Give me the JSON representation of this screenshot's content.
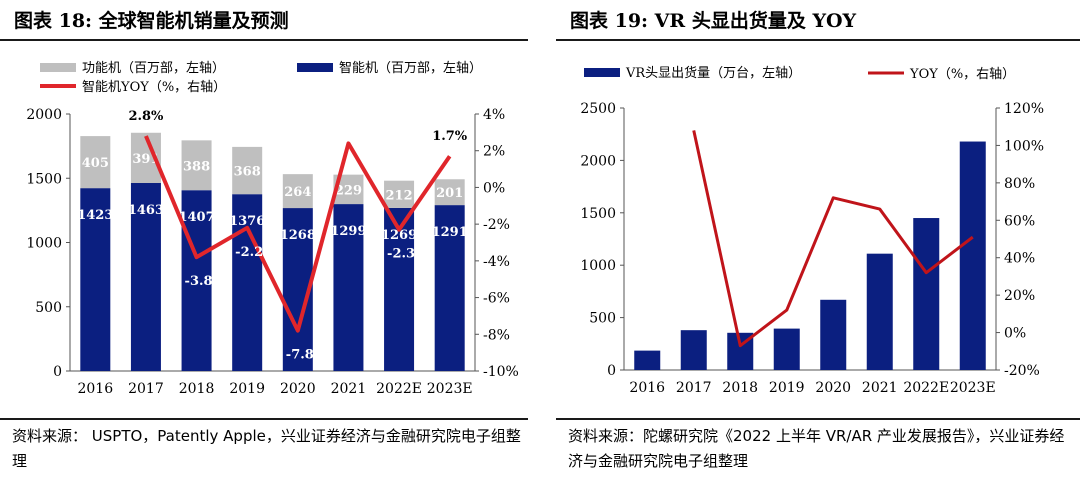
{
  "chart_data": [
    {
      "id": "smartphone",
      "type": "bar",
      "title": "图表 18:  全球智能机销量及预测",
      "categories": [
        "2016",
        "2017",
        "2018",
        "2019",
        "2020",
        "2021",
        "2022E",
        "2023E"
      ],
      "series": [
        {
          "name": "智能机（百万部，左轴）",
          "kind": "bar-stack",
          "axis": "left",
          "color": "#0b1f80",
          "values": [
            1423,
            1463,
            1407,
            1376,
            1268,
            1299,
            1269,
            1291
          ]
        },
        {
          "name": "功能机（百万部，左轴）",
          "kind": "bar-stack",
          "axis": "left",
          "color": "#bfbfbf",
          "values": [
            405,
            391,
            388,
            368,
            264,
            229,
            212,
            201
          ]
        },
        {
          "name": "智能机YOY（%，右轴）",
          "kind": "line",
          "axis": "right",
          "color": "#e0262b",
          "values": [
            null,
            2.8,
            -3.8,
            -2.2,
            -7.8,
            2.4,
            -2.3,
            1.7
          ]
        }
      ],
      "left_axis": {
        "min": 0,
        "max": 2000,
        "ticks": [
          "0",
          "500",
          "1000",
          "1500",
          "2000"
        ]
      },
      "right_axis": {
        "min": -10,
        "max": 4,
        "ticks": [
          "-10%",
          "-8%",
          "-6%",
          "-4%",
          "-2%",
          "0%",
          "2%",
          "4%"
        ]
      },
      "point_labels": [
        {
          "index": 1,
          "text": "2.8%"
        },
        {
          "index": 2,
          "text": "-3.8"
        },
        {
          "index": 3,
          "text": "-2.2"
        },
        {
          "index": 4,
          "text": "-7.8"
        },
        {
          "index": 6,
          "text": "-2.3"
        },
        {
          "index": 7,
          "text": "1.7%"
        }
      ],
      "source": "资料来源：  USPTO，Patently Apple，兴业证券经济与金融研究院电子组整理"
    },
    {
      "id": "vr",
      "type": "bar",
      "title": "图表 19:   VR 头显出货量及 YOY",
      "categories": [
        "2016",
        "2017",
        "2018",
        "2019",
        "2020",
        "2021",
        "2022E",
        "2023E"
      ],
      "series": [
        {
          "name": "VR头显出货量（万台，左轴）",
          "kind": "bar",
          "axis": "left",
          "color": "#0b1f80",
          "values": [
            185,
            380,
            355,
            395,
            670,
            1110,
            1450,
            2180
          ]
        },
        {
          "name": "YOY（%，右轴）",
          "kind": "line",
          "axis": "right",
          "color": "#c0141a",
          "values": [
            null,
            108,
            -7,
            12,
            72,
            66,
            32,
            51
          ]
        }
      ],
      "left_axis": {
        "min": 0,
        "max": 2500,
        "ticks": [
          "0",
          "500",
          "1000",
          "1500",
          "2000",
          "2500"
        ]
      },
      "right_axis": {
        "min": -20,
        "max": 120,
        "ticks": [
          "-20%",
          "0%",
          "20%",
          "40%",
          "60%",
          "80%",
          "100%",
          "120%"
        ]
      },
      "source": "资料来源：陀螺研究院《2022 上半年 VR/AR 产业发展报告》，兴业证券经济与金融研究院电子组整理"
    }
  ]
}
